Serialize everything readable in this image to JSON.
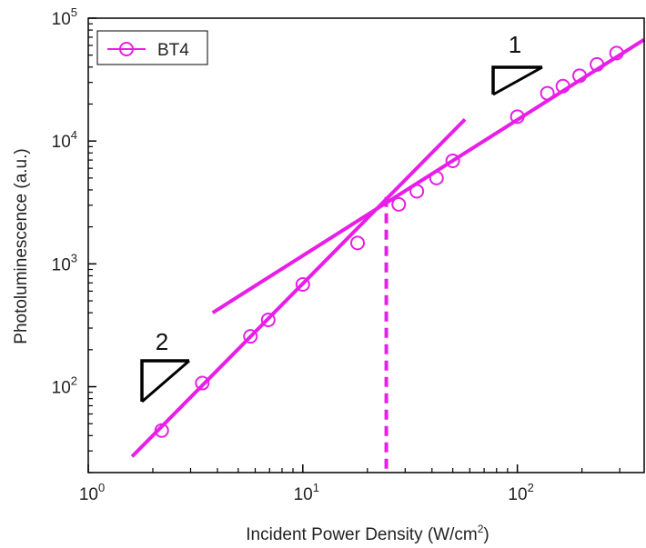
{
  "chart_data": {
    "type": "scatter",
    "xlabel": "Incident Power Density (W/cm",
    "xlabel_sup": "2",
    "xlabel_tail": ")",
    "ylabel": "Photoluminescence (a.u.)",
    "xscale": "log",
    "yscale": "log",
    "xlim": [
      1,
      390
    ],
    "ylim": [
      20,
      100000
    ],
    "grid": false,
    "legend_position": "top-left",
    "x_ticks": [
      {
        "value": 1,
        "base": "10",
        "exp": "0"
      },
      {
        "value": 10,
        "base": "10",
        "exp": "1"
      },
      {
        "value": 100,
        "base": "10",
        "exp": "2"
      }
    ],
    "y_ticks": [
      {
        "value": 100,
        "base": "10",
        "exp": "2"
      },
      {
        "value": 1000,
        "base": "10",
        "exp": "3"
      },
      {
        "value": 10000,
        "base": "10",
        "exp": "4"
      },
      {
        "value": 100000,
        "base": "10",
        "exp": "5"
      }
    ],
    "series": [
      {
        "name": "BT4",
        "color": "#e81ee8",
        "marker": "open-circle",
        "points": [
          {
            "x": 2.2,
            "y": 44
          },
          {
            "x": 3.4,
            "y": 107
          },
          {
            "x": 5.7,
            "y": 257
          },
          {
            "x": 6.9,
            "y": 350
          },
          {
            "x": 10,
            "y": 680
          },
          {
            "x": 18,
            "y": 1480
          },
          {
            "x": 28,
            "y": 3050
          },
          {
            "x": 34,
            "y": 3900
          },
          {
            "x": 42,
            "y": 5000
          },
          {
            "x": 50,
            "y": 6900
          },
          {
            "x": 100,
            "y": 15800
          },
          {
            "x": 138,
            "y": 24500
          },
          {
            "x": 163,
            "y": 28000
          },
          {
            "x": 195,
            "y": 34000
          },
          {
            "x": 235,
            "y": 42000
          },
          {
            "x": 290,
            "y": 52000
          }
        ]
      }
    ],
    "fit_lines": [
      {
        "slope": 2,
        "x1": 1.6,
        "y1": 27,
        "x2": 57,
        "y2": 15000
      },
      {
        "slope": 1,
        "x1": 3.8,
        "y1": 400,
        "x2": 390,
        "y2": 67000
      }
    ],
    "crossover": {
      "x": 24.5,
      "y": 3500
    },
    "slope_labels": [
      "2",
      "1"
    ],
    "line_color": "#e81ee8",
    "triangle_color": "#000000"
  }
}
